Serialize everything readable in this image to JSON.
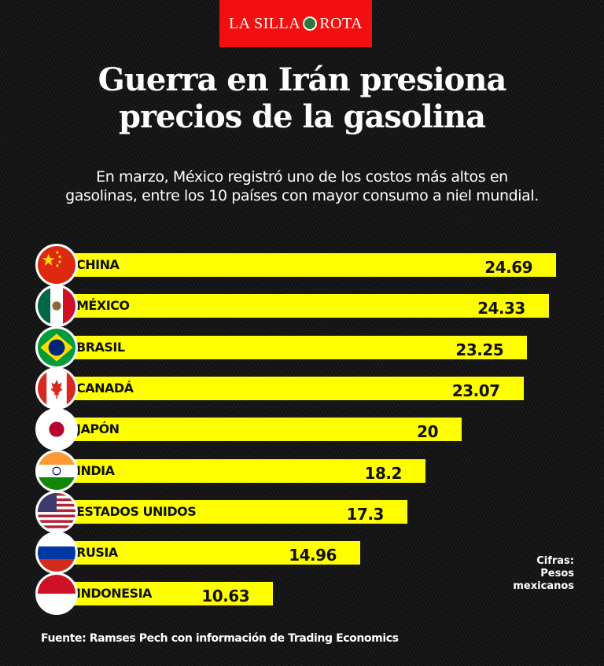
{
  "brand": {
    "left": "LA SILLA",
    "right": "ROTA",
    "color": "#f30f0f"
  },
  "title": {
    "line1": "Guerra en Irán presiona",
    "line2": "precios de la gasolina"
  },
  "subtitle": {
    "line1": "En marzo, México registró uno de los costos más altos en",
    "line2": "gasolinas, entre los 10 países con mayor consumo a niel mundial."
  },
  "units_note": {
    "line1": "Cifras:",
    "line2": "Pesos",
    "line3": "mexicanos"
  },
  "source": "Fuente: Ramses Pech con información de Trading Economics",
  "bar_color": "#ffff00",
  "chart_data": {
    "type": "bar",
    "orientation": "horizontal",
    "title": "Guerra en Irán presiona precios de la gasolina",
    "xlabel": "",
    "ylabel": "",
    "unit": "Pesos mexicanos",
    "grid": false,
    "categories": [
      "CHINA",
      "MÉXICO",
      "BRASIL",
      "CANADÁ",
      "JAPÓN",
      "INDIA",
      "ESTADOS UNIDOS",
      "RUSIA",
      "INDONESIA"
    ],
    "values": [
      24.69,
      24.33,
      23.25,
      23.07,
      20,
      18.2,
      17.3,
      14.96,
      10.63
    ],
    "value_labels": [
      "24.69",
      "24.33",
      "23.25",
      "23.07",
      "20",
      "18.2",
      "17.3",
      "14.96",
      "10.63"
    ],
    "flags": [
      "china-flag",
      "mexico-flag",
      "brazil-flag",
      "canada-flag",
      "japan-flag",
      "india-flag",
      "usa-flag",
      "russia-flag",
      "indonesia-flag"
    ]
  }
}
